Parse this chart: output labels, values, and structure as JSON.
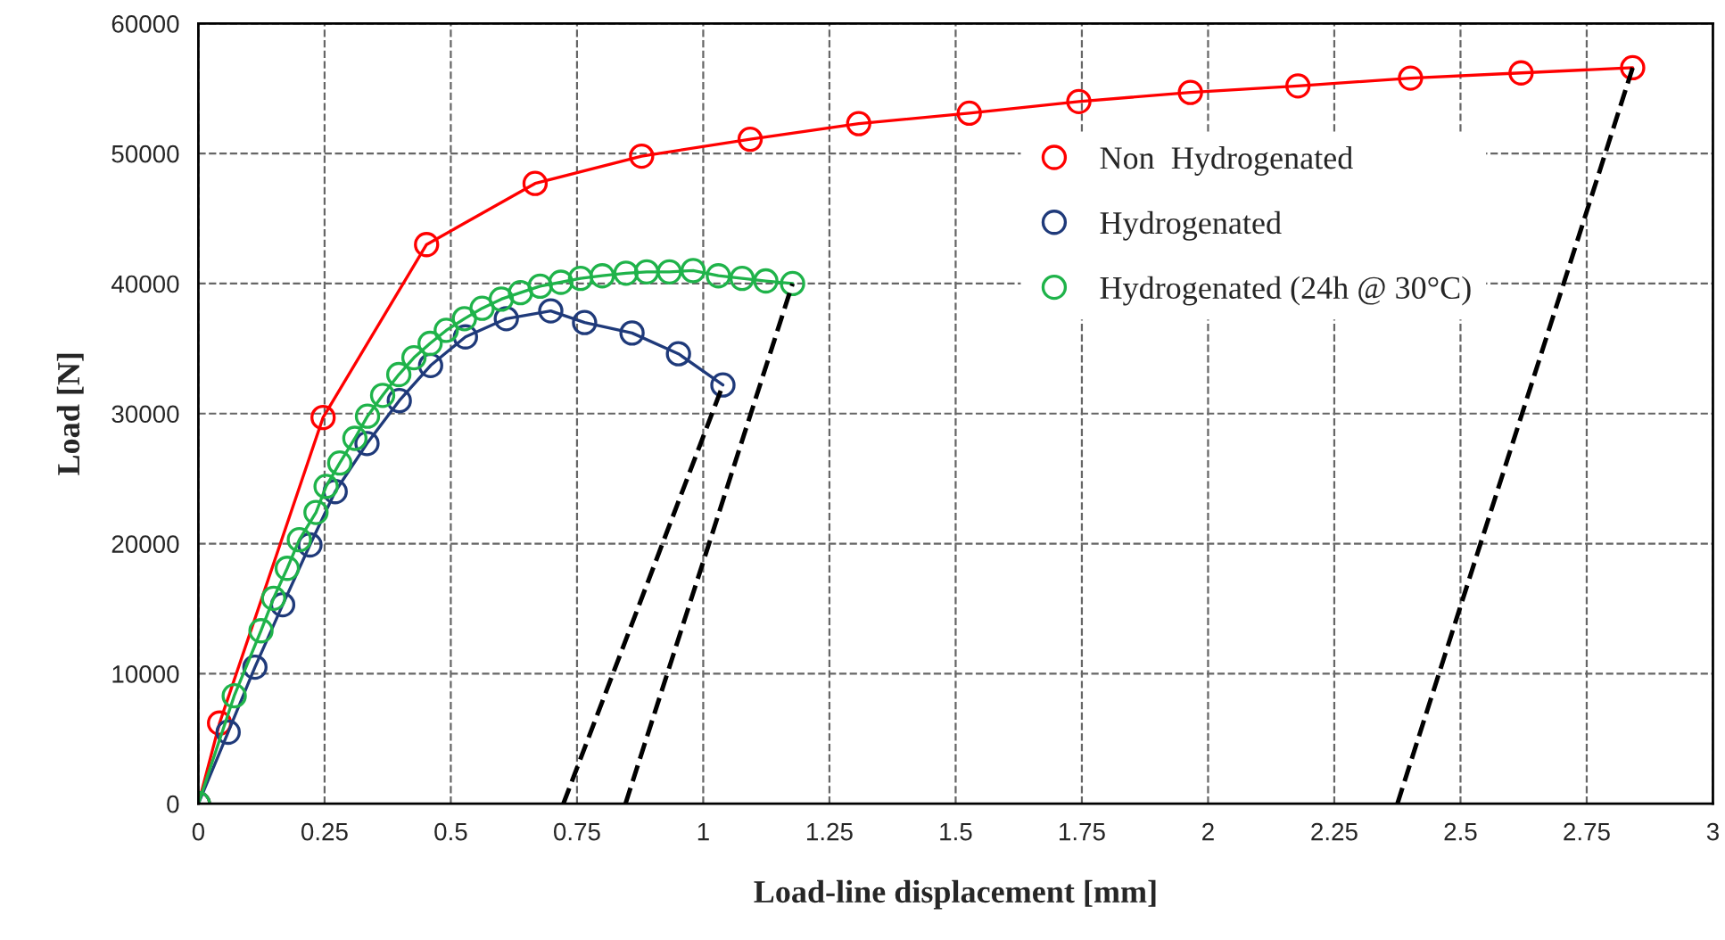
{
  "chart_data": {
    "type": "line",
    "xlabel": "Load-line displacement [mm]",
    "ylabel": "Load [N]",
    "xlim": [
      0,
      3
    ],
    "xticks": [
      0,
      0.25,
      0.5,
      0.75,
      1,
      1.25,
      1.5,
      1.75,
      2,
      2.25,
      2.5,
      2.75,
      3
    ],
    "ylim": [
      0,
      60000
    ],
    "yticks": [
      0,
      10000,
      20000,
      30000,
      40000,
      50000,
      60000
    ],
    "grid": true,
    "legend": "top right",
    "series": [
      {
        "name": "Non  Hydrogenated",
        "color": "#ff0000",
        "marker": "circle",
        "x": [
          0,
          0.042,
          0.247,
          0.452,
          0.667,
          0.878,
          1.093,
          1.308,
          1.527,
          1.744,
          1.965,
          2.178,
          2.401,
          2.62,
          2.841
        ],
        "values": [
          0,
          6200,
          29700,
          43000,
          47700,
          49800,
          51100,
          52300,
          53100,
          54000,
          54700,
          55200,
          55800,
          56200,
          56600
        ]
      },
      {
        "name": "Hydrogenated",
        "color": "#1f3a7a",
        "marker": "circle",
        "x": [
          0,
          0.059,
          0.112,
          0.167,
          0.221,
          0.271,
          0.334,
          0.398,
          0.46,
          0.529,
          0.61,
          0.698,
          0.765,
          0.859,
          0.951,
          1.039
        ],
        "values": [
          0,
          5500,
          10500,
          15300,
          19900,
          24000,
          27700,
          31000,
          33700,
          35900,
          37300,
          37900,
          37000,
          36200,
          34600,
          32200
        ]
      },
      {
        "name": "Hydrogenated (24h @ 30°C)",
        "color": "#1fb34a",
        "marker": "circle",
        "x": [
          0,
          0.071,
          0.124,
          0.149,
          0.176,
          0.2,
          0.233,
          0.253,
          0.28,
          0.31,
          0.335,
          0.365,
          0.397,
          0.427,
          0.459,
          0.491,
          0.527,
          0.562,
          0.6,
          0.638,
          0.677,
          0.718,
          0.757,
          0.8,
          0.847,
          0.888,
          0.933,
          0.98,
          1.03,
          1.077,
          1.124,
          1.177
        ],
        "values": [
          0,
          8300,
          13300,
          15800,
          18100,
          20300,
          22400,
          24400,
          26200,
          28100,
          29800,
          31400,
          33000,
          34300,
          35400,
          36400,
          37300,
          38100,
          38800,
          39300,
          39800,
          40100,
          40400,
          40600,
          40800,
          40900,
          40900,
          41000,
          40600,
          40400,
          40200,
          40000
        ]
      },
      {
        "color": "#000000",
        "marker": "none",
        "line_style": "dashed",
        "x": [
          0.723,
          1.039
        ],
        "values": [
          0,
          32200
        ]
      },
      {
        "color": "#000000",
        "marker": "none",
        "line_style": "dashed",
        "x": [
          0.846,
          1.177
        ],
        "values": [
          0,
          40000
        ]
      },
      {
        "color": "#000000",
        "marker": "none",
        "line_style": "dashed",
        "x": [
          2.375,
          2.841
        ],
        "values": [
          0,
          56600
        ]
      }
    ]
  }
}
